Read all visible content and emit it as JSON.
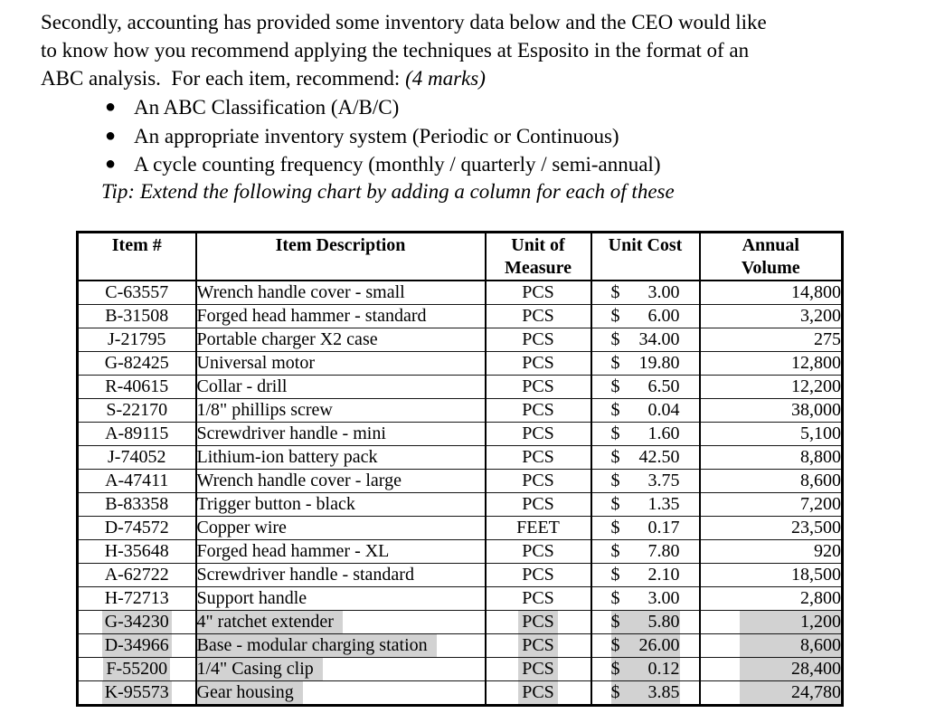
{
  "page": {
    "paragraph_lines": [
      "Secondly, accounting has provided some inventory data below and the CEO would like",
      "to know how you recommend applying the techniques at Esposito in the format of an",
      "ABC analysis.  For each item, recommend: "
    ],
    "marks_note": "(4 marks)",
    "bullet_char": "●",
    "bullets": [
      "An ABC Classification (A/B/C)",
      "An appropriate inventory system (Periodic or Continuous)",
      "A cycle counting frequency (monthly / quarterly / semi-annual)"
    ],
    "tip": "Tip: Extend the following chart by adding a column for each of these"
  },
  "table": {
    "currency": "$",
    "headers": [
      "Item #",
      "Item Description",
      "Unit of\nMeasure",
      "Unit Cost",
      "Annual\nVolume"
    ],
    "highlight_color": "#d2d2d2",
    "rows": [
      {
        "item": "C-63557",
        "desc": "Wrench handle cover - small",
        "uom": "PCS",
        "cost": "3.00",
        "vol": "14,800",
        "hl": false
      },
      {
        "item": "B-31508",
        "desc": "Forged head hammer - standard",
        "uom": "PCS",
        "cost": "6.00",
        "vol": "3,200",
        "hl": false
      },
      {
        "item": "J-21795",
        "desc": "Portable charger X2 case",
        "uom": "PCS",
        "cost": "34.00",
        "vol": "275",
        "hl": false
      },
      {
        "item": "G-82425",
        "desc": "Universal motor",
        "uom": "PCS",
        "cost": "19.80",
        "vol": "12,800",
        "hl": false
      },
      {
        "item": "R-40615",
        "desc": "Collar - drill",
        "uom": "PCS",
        "cost": "6.50",
        "vol": "12,200",
        "hl": false
      },
      {
        "item": "S-22170",
        "desc": "1/8\" phillips screw",
        "uom": "PCS",
        "cost": "0.04",
        "vol": "38,000",
        "hl": false
      },
      {
        "item": "A-89115",
        "desc": "Screwdriver handle - mini",
        "uom": "PCS",
        "cost": "1.60",
        "vol": "5,100",
        "hl": false
      },
      {
        "item": "J-74052",
        "desc": "Lithium-ion battery pack",
        "uom": "PCS",
        "cost": "42.50",
        "vol": "8,800",
        "hl": false
      },
      {
        "item": "A-47411",
        "desc": "Wrench handle cover - large",
        "uom": "PCS",
        "cost": "3.75",
        "vol": "8,600",
        "hl": false
      },
      {
        "item": "B-83358",
        "desc": "Trigger button - black",
        "uom": "PCS",
        "cost": "1.35",
        "vol": "7,200",
        "hl": false
      },
      {
        "item": "D-74572",
        "desc": "Copper wire",
        "uom": "FEET",
        "cost": "0.17",
        "vol": "23,500",
        "hl": false
      },
      {
        "item": "H-35648",
        "desc": "Forged head hammer - XL",
        "uom": "PCS",
        "cost": "7.80",
        "vol": "920",
        "hl": false
      },
      {
        "item": "A-62722",
        "desc": "Screwdriver handle - standard",
        "uom": "PCS",
        "cost": "2.10",
        "vol": "18,500",
        "hl": false
      },
      {
        "item": "H-72713",
        "desc": "Support handle",
        "uom": "PCS",
        "cost": "3.00",
        "vol": "2,800",
        "hl": false
      },
      {
        "item": "G-34230",
        "desc": "4\" ratchet extender",
        "uom": "PCS",
        "cost": "5.80",
        "vol": "1,200",
        "hl": true
      },
      {
        "item": "D-34966",
        "desc": "Base - modular charging station",
        "uom": "PCS",
        "cost": "26.00",
        "vol": "8,600",
        "hl": true
      },
      {
        "item": "F-55200",
        "desc": "1/4\" Casing clip",
        "uom": "PCS",
        "cost": "0.12",
        "vol": "28,400",
        "hl": true
      },
      {
        "item": "K-95573",
        "desc": "Gear housing",
        "uom": "PCS",
        "cost": "3.85",
        "vol": "24,780",
        "hl": true
      }
    ]
  }
}
